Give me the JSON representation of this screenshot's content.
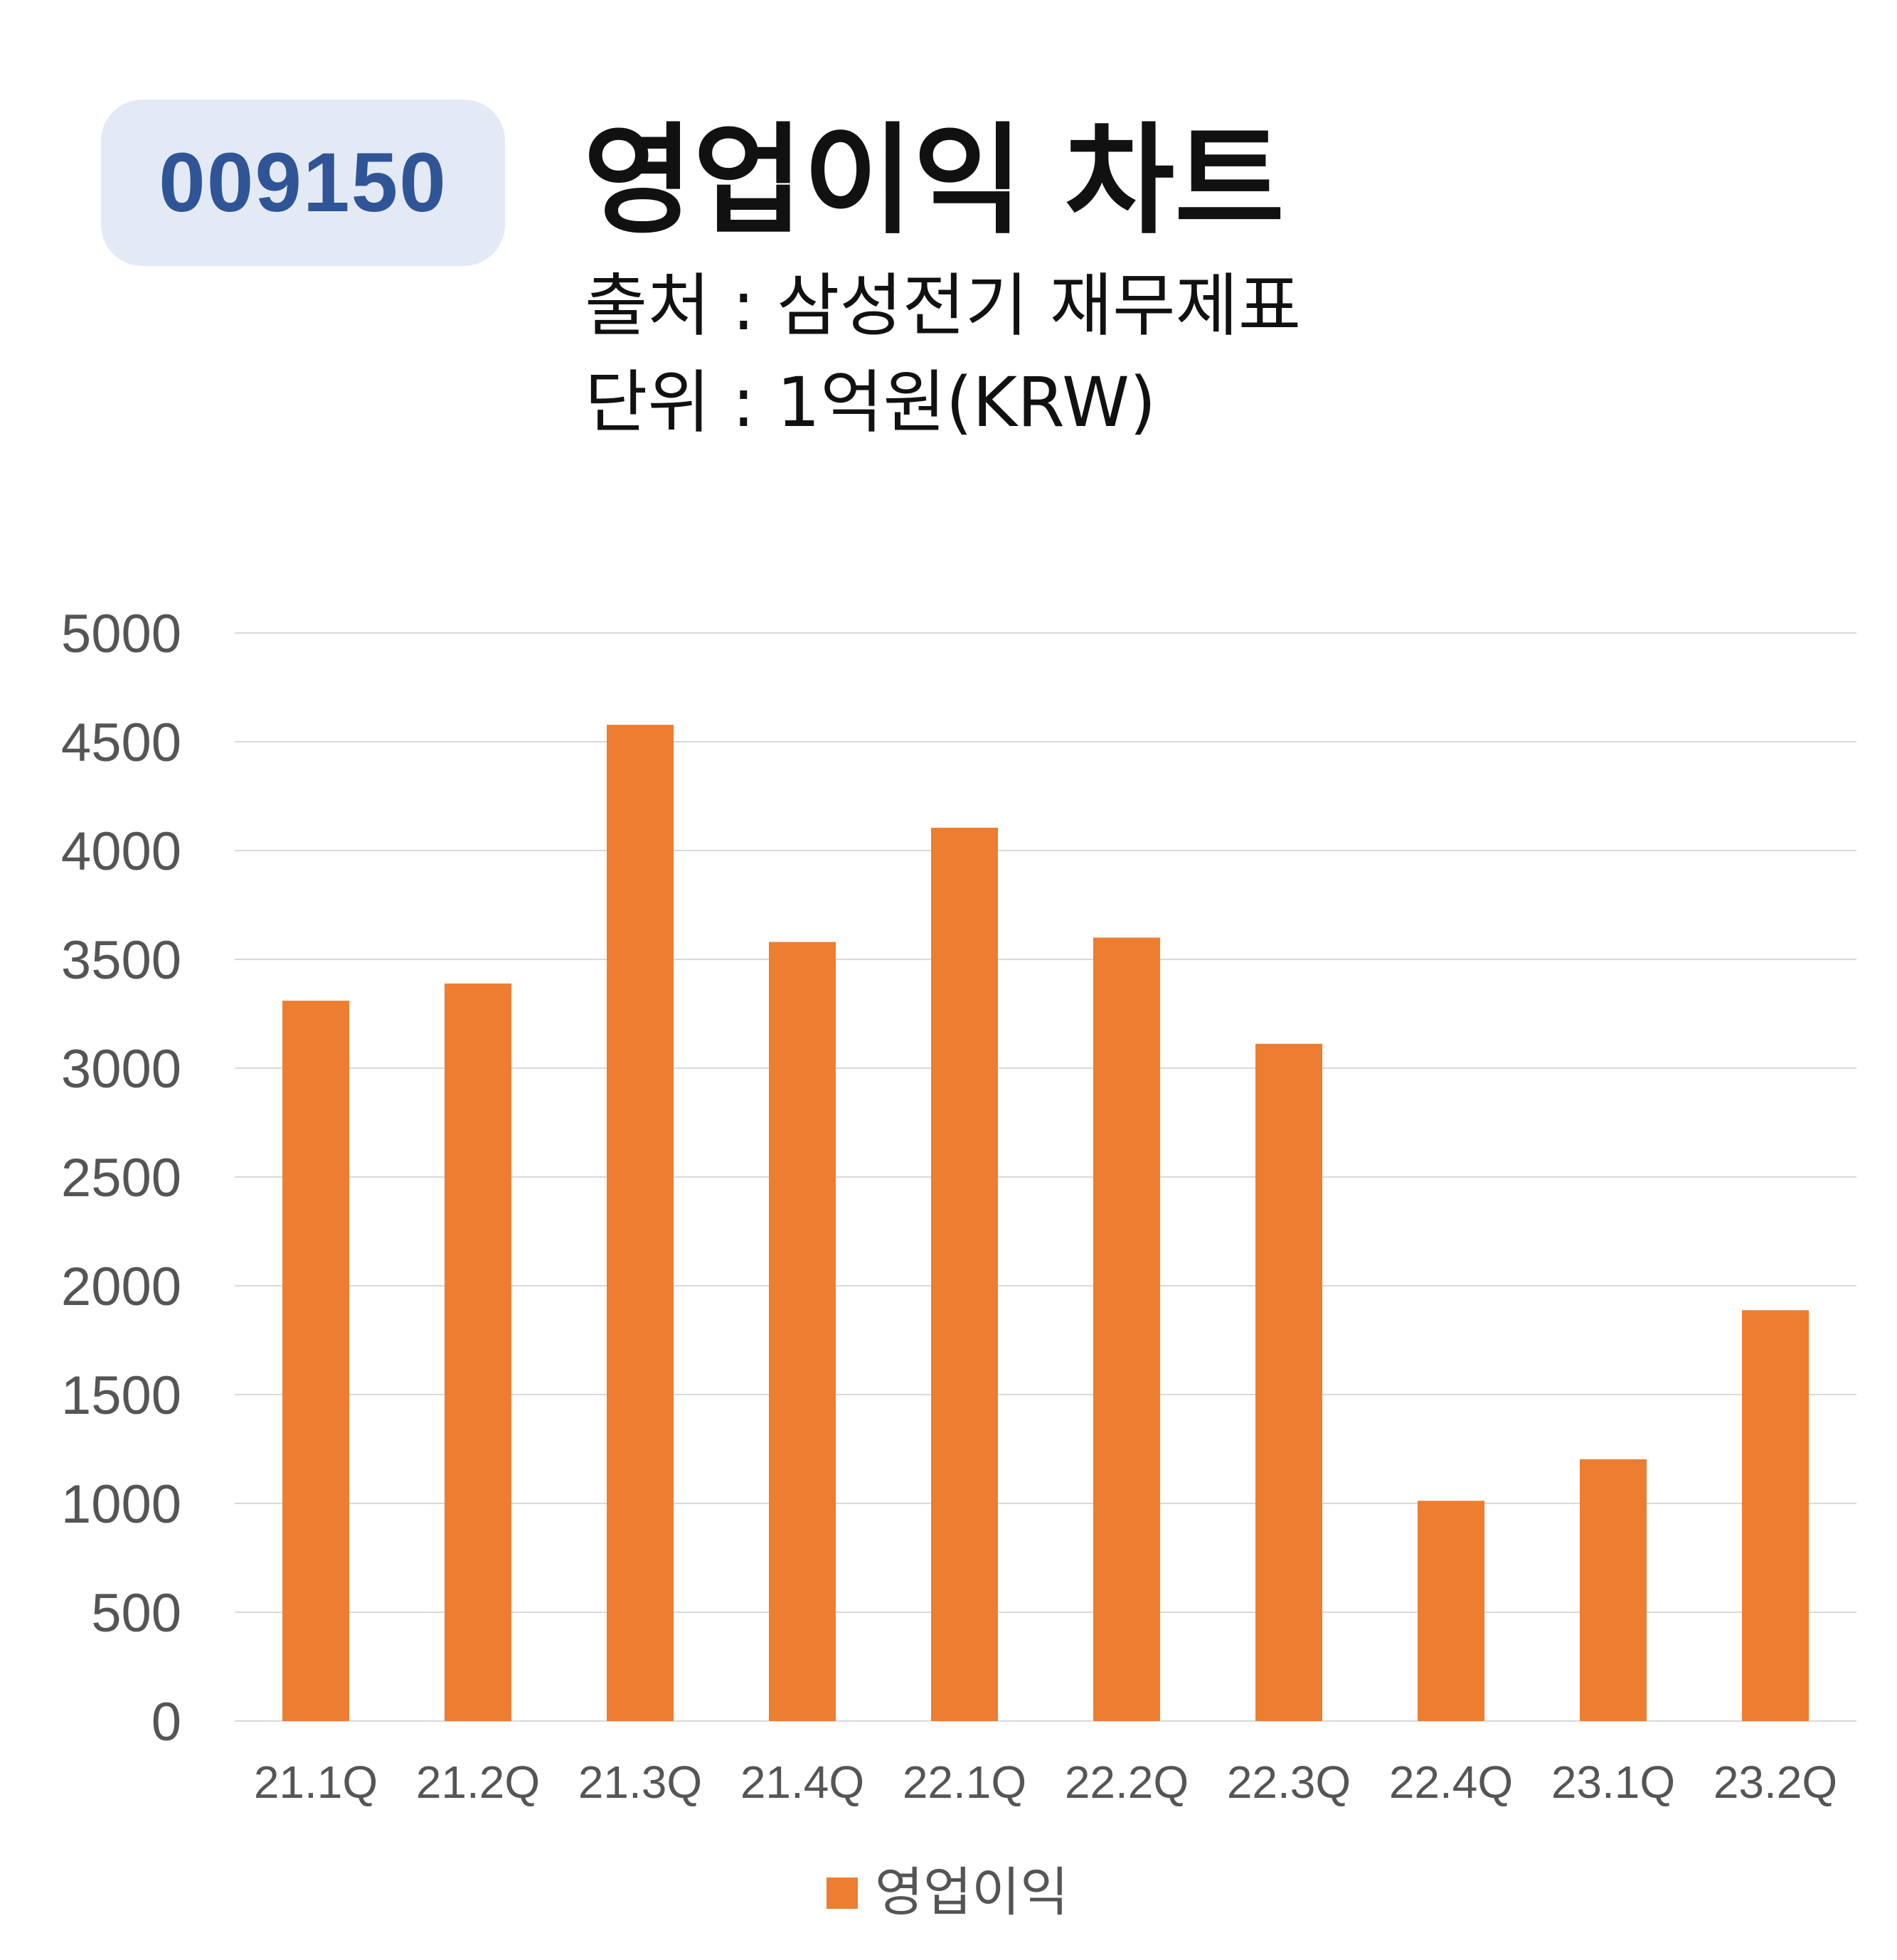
{
  "header": {
    "ticker": "009150",
    "title": "영업이익 차트",
    "source": "출처 : 삼성전기 재무제표",
    "unit": "단위 : 1억원(KRW)"
  },
  "chart_data": {
    "type": "bar",
    "categories": [
      "21.1Q",
      "21.2Q",
      "21.3Q",
      "21.4Q",
      "22.1Q",
      "22.2Q",
      "22.3Q",
      "22.4Q",
      "23.1Q",
      "23.2Q"
    ],
    "series": [
      {
        "name": "영업이익",
        "values": [
          3310,
          3389,
          4578,
          3580,
          4105,
          3600,
          3112,
          1012,
          1203,
          1888
        ]
      }
    ],
    "ylim": [
      0,
      5000
    ],
    "yticks": [
      0,
      500,
      1000,
      1500,
      2000,
      2500,
      3000,
      3500,
      4000,
      4500,
      5000
    ],
    "grid": true,
    "legend": "bottom",
    "bar_color": "#ed7d31",
    "grid_color": "#d9d9d9"
  }
}
